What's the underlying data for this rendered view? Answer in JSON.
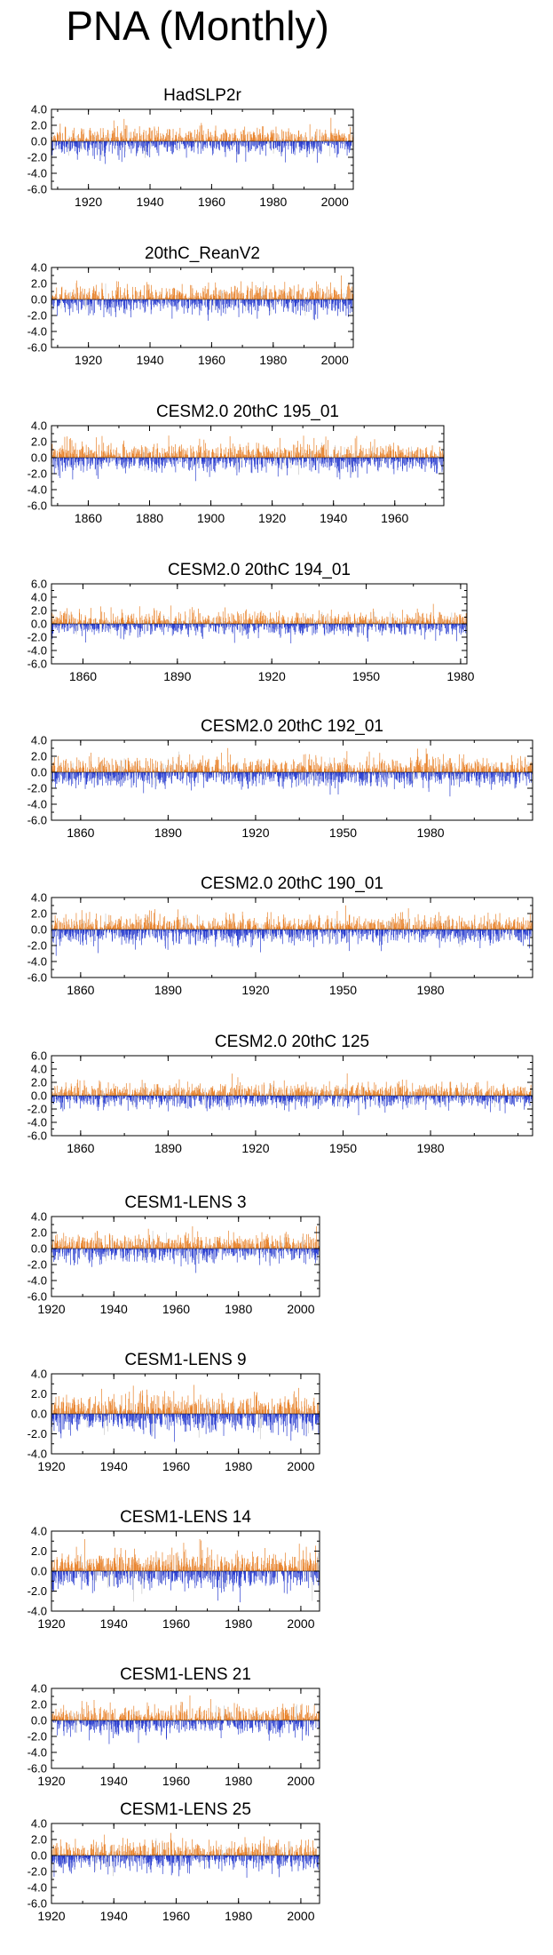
{
  "page": {
    "title": "PNA (Monthly)"
  },
  "colors": {
    "positive": "#e8822a",
    "negative": "#2a3ed0",
    "missing": "#c8c8c8",
    "axis": "#000000"
  },
  "chart_data": [
    {
      "type": "bar",
      "title": "HadSLP2r",
      "x_start": 1908,
      "x_end": 2006,
      "xticks": [
        "1920",
        "1940",
        "1960",
        "1980",
        "2000"
      ],
      "yticks": [
        "4.0",
        "2.0",
        "0.0",
        "-2.0",
        "-4.0",
        "-6.0"
      ],
      "ylim": [
        -6,
        4
      ],
      "series": [
        {
          "name": "PNA",
          "values": "monthly series, 1908-2006"
        }
      ]
    },
    {
      "type": "bar",
      "title": "20thC_ReanV2",
      "x_start": 1908,
      "x_end": 2006,
      "xticks": [
        "1920",
        "1940",
        "1960",
        "1980",
        "2000"
      ],
      "yticks": [
        "4.0",
        "2.0",
        "0.0",
        "-2.0",
        "-4.0",
        "-6.0"
      ],
      "ylim": [
        -6,
        4
      ],
      "series": [
        {
          "name": "PNA",
          "values": "monthly series, 1908-2006"
        }
      ]
    },
    {
      "type": "bar",
      "title": "CESM2.0 20thC 195_01",
      "x_start": 1848,
      "x_end": 1976,
      "xticks": [
        "1860",
        "1880",
        "1900",
        "1920",
        "1940",
        "1960"
      ],
      "yticks": [
        "4.0",
        "2.0",
        "0.0",
        "-2.0",
        "-4.0",
        "-6.0"
      ],
      "ylim": [
        -6,
        4
      ],
      "series": [
        {
          "name": "PNA",
          "values": "monthly series, 1848-1976"
        }
      ]
    },
    {
      "type": "bar",
      "title": "CESM2.0 20thC 194_01",
      "x_start": 1850,
      "x_end": 1982,
      "xticks": [
        "1860",
        "1890",
        "1920",
        "1950",
        "1980"
      ],
      "yticks": [
        "6.0",
        "4.0",
        "2.0",
        "0.0",
        "-2.0",
        "-4.0",
        "-6.0"
      ],
      "ylim": [
        -6,
        6
      ],
      "series": [
        {
          "name": "PNA",
          "values": "monthly series, 1850-1982"
        }
      ]
    },
    {
      "type": "bar",
      "title": "CESM2.0 20thC 192_01",
      "x_start": 1850,
      "x_end": 2015,
      "xticks": [
        "1860",
        "1890",
        "1920",
        "1950",
        "1980"
      ],
      "yticks": [
        "4.0",
        "2.0",
        "0.0",
        "-2.0",
        "-4.0",
        "-6.0"
      ],
      "ylim": [
        -6,
        4
      ],
      "series": [
        {
          "name": "PNA",
          "values": "monthly series, 1850-2015"
        }
      ]
    },
    {
      "type": "bar",
      "title": "CESM2.0 20thC 190_01",
      "x_start": 1850,
      "x_end": 2015,
      "xticks": [
        "1860",
        "1890",
        "1920",
        "1950",
        "1980"
      ],
      "yticks": [
        "4.0",
        "2.0",
        "0.0",
        "-2.0",
        "-4.0",
        "-6.0"
      ],
      "ylim": [
        -6,
        4
      ],
      "series": [
        {
          "name": "PNA",
          "values": "monthly series, 1850-2015"
        }
      ]
    },
    {
      "type": "bar",
      "title": "CESM2.0 20thC 125",
      "x_start": 1850,
      "x_end": 2015,
      "xticks": [
        "1860",
        "1890",
        "1920",
        "1950",
        "1980"
      ],
      "yticks": [
        "6.0",
        "4.0",
        "2.0",
        "0.0",
        "-2.0",
        "-4.0",
        "-6.0"
      ],
      "ylim": [
        -6,
        6
      ],
      "series": [
        {
          "name": "PNA",
          "values": "monthly series, 1850-2015"
        }
      ]
    },
    {
      "type": "bar",
      "title": "CESM1-LENS 3",
      "x_start": 1920,
      "x_end": 2006,
      "xticks": [
        "1920",
        "1940",
        "1960",
        "1980",
        "2000"
      ],
      "yticks": [
        "4.0",
        "2.0",
        "0.0",
        "-2.0",
        "-4.0",
        "-6.0"
      ],
      "ylim": [
        -6,
        4
      ],
      "series": [
        {
          "name": "PNA",
          "values": "monthly series, 1920-2006"
        }
      ]
    },
    {
      "type": "bar",
      "title": "CESM1-LENS 9",
      "x_start": 1920,
      "x_end": 2006,
      "xticks": [
        "1920",
        "1940",
        "1960",
        "1980",
        "2000"
      ],
      "yticks": [
        "4.0",
        "2.0",
        "0.0",
        "-2.0",
        "-4.0"
      ],
      "ylim": [
        -4,
        4
      ],
      "series": [
        {
          "name": "PNA",
          "values": "monthly series, 1920-2006"
        }
      ]
    },
    {
      "type": "bar",
      "title": "CESM1-LENS 14",
      "x_start": 1920,
      "x_end": 2006,
      "xticks": [
        "1920",
        "1940",
        "1960",
        "1980",
        "2000"
      ],
      "yticks": [
        "4.0",
        "2.0",
        "0.0",
        "-2.0",
        "-4.0"
      ],
      "ylim": [
        -4,
        4
      ],
      "series": [
        {
          "name": "PNA",
          "values": "monthly series, 1920-2006"
        }
      ]
    },
    {
      "type": "bar",
      "title": "CESM1-LENS 21",
      "x_start": 1920,
      "x_end": 2006,
      "xticks": [
        "1920",
        "1940",
        "1960",
        "1980",
        "2000"
      ],
      "yticks": [
        "4.0",
        "2.0",
        "0.0",
        "-2.0",
        "-4.0",
        "-6.0"
      ],
      "ylim": [
        -6,
        4
      ],
      "series": [
        {
          "name": "PNA",
          "values": "monthly series, 1920-2006"
        }
      ]
    },
    {
      "type": "bar",
      "title": "CESM1-LENS 25",
      "x_start": 1920,
      "x_end": 2006,
      "xticks": [
        "1920",
        "1940",
        "1960",
        "1980",
        "2000"
      ],
      "yticks": [
        "4.0",
        "2.0",
        "0.0",
        "-2.0",
        "-4.0",
        "-6.0"
      ],
      "ylim": [
        -6,
        4
      ],
      "series": [
        {
          "name": "PNA",
          "values": "monthly series, 1920-2006"
        }
      ]
    }
  ]
}
